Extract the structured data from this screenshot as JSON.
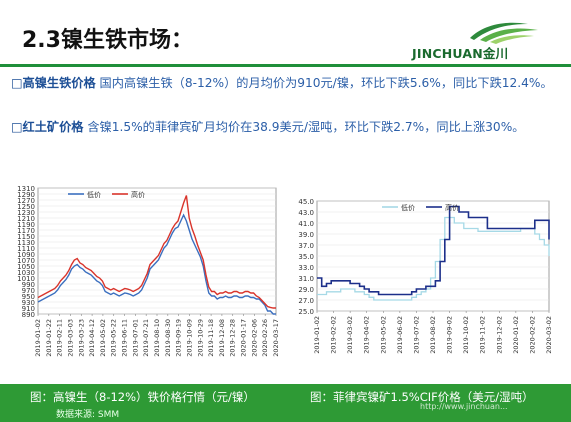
{
  "page": {
    "title": "2.3镍生铁市场：",
    "logo_text": "JINCHUAN金川",
    "para1_label": "□高镍生铁价格",
    "para1_text": "  国内高镍生铁（8-12%）的月均价为910元/镍，环比下跌5.6%，同比下跌12.4%。",
    "para2_label": "□红土矿价格",
    "para2_text": "  含镍1.5%的菲律宾矿月均价在38.9美元/湿吨，环比下跌2.7%，同比上涨30%。",
    "caption_left": "图：高镍生（8-12%）铁价格行情（元/镍）",
    "caption_right": "图：菲律宾镍矿1.5%CIF价格（美元/湿吨）",
    "source": "数据来源: SMM",
    "watermark": "http://www.jinchuan..."
  },
  "colors": {
    "accent_green": "#2e9a35",
    "text_blue": "#2c5fa8",
    "low_series": "#3b6fbf",
    "high_series": "#d9342b",
    "right_low": "#a6d9e6",
    "right_high": "#1c2f8a"
  },
  "chart_data": [
    {
      "type": "line",
      "title": "",
      "xlabel": "",
      "ylabel": "",
      "ylim": [
        890,
        1310
      ],
      "yticks": [
        890,
        910,
        930,
        950,
        970,
        990,
        1010,
        1030,
        1050,
        1070,
        1090,
        1110,
        1130,
        1150,
        1170,
        1190,
        1210,
        1230,
        1250,
        1270,
        1290,
        1310
      ],
      "xticks": [
        "2019-01-02",
        "2019-01-22",
        "2019-02-11",
        "2019-03-03",
        "2019-03-23",
        "2019-04-12",
        "2019-05-02",
        "2019-05-22",
        "2019-06-11",
        "2019-07-01",
        "2019-07-21",
        "2019-08-10",
        "2019-08-30",
        "2019-09-19",
        "2019-10-09",
        "2019-10-29",
        "2019-11-18",
        "2019-12-08",
        "2019-12-28",
        "2020-01-17",
        "2020-02-06",
        "2020-02-26",
        "2020-03-17"
      ],
      "legend_position": "top-center",
      "series": [
        {
          "name": "低价",
          "values": [
            930,
            935,
            940,
            945,
            950,
            955,
            960,
            970,
            985,
            995,
            1005,
            1020,
            1040,
            1050,
            1055,
            1045,
            1040,
            1030,
            1025,
            1020,
            1010,
            1000,
            995,
            985,
            965,
            960,
            955,
            960,
            955,
            950,
            955,
            960,
            958,
            955,
            950,
            955,
            960,
            970,
            990,
            1010,
            1040,
            1050,
            1060,
            1070,
            1090,
            1110,
            1120,
            1140,
            1160,
            1175,
            1180,
            1200,
            1220,
            1200,
            1170,
            1140,
            1120,
            1100,
            1080,
            1050,
            1000,
            960,
            950,
            950,
            940,
            945,
            945,
            950,
            945,
            945,
            950,
            950,
            945,
            945,
            950,
            950,
            945,
            945,
            940,
            940,
            930,
            920,
            900,
            900,
            890,
            890
          ]
        },
        {
          "name": "高价",
          "values": [
            945,
            950,
            955,
            960,
            965,
            970,
            975,
            985,
            1000,
            1010,
            1020,
            1035,
            1055,
            1070,
            1075,
            1060,
            1055,
            1045,
            1040,
            1035,
            1025,
            1015,
            1010,
            1000,
            980,
            975,
            970,
            975,
            970,
            965,
            970,
            975,
            973,
            970,
            965,
            970,
            975,
            985,
            1005,
            1025,
            1055,
            1065,
            1075,
            1085,
            1105,
            1125,
            1135,
            1155,
            1175,
            1190,
            1200,
            1230,
            1260,
            1285,
            1210,
            1175,
            1150,
            1120,
            1095,
            1070,
            1020,
            980,
            965,
            965,
            955,
            960,
            960,
            965,
            960,
            960,
            965,
            965,
            960,
            960,
            965,
            965,
            960,
            960,
            950,
            945,
            935,
            925,
            915,
            912,
            910,
            910
          ]
        }
      ]
    },
    {
      "type": "line",
      "title": "",
      "xlabel": "",
      "ylabel": "",
      "ylim": [
        25.0,
        45.0
      ],
      "yticks": [
        25.0,
        27.0,
        29.0,
        31.0,
        33.0,
        35.0,
        37.0,
        39.0,
        41.0,
        43.0,
        45.0
      ],
      "xticks": [
        "2019-01-02",
        "2019-02-02",
        "2019-03-02",
        "2019-04-02",
        "2019-05-02",
        "2019-06-02",
        "2019-07-02",
        "2019-08-02",
        "2019-09-02",
        "2019-10-02",
        "2019-11-02",
        "2019-12-02",
        "2020-01-02",
        "2020-02-02",
        "2020-03-02"
      ],
      "legend_position": "top-center",
      "series": [
        {
          "name": "低价",
          "values": [
            28.0,
            28.0,
            28.5,
            28.5,
            28.5,
            29.0,
            29.0,
            29.0,
            28.5,
            28.5,
            28.0,
            27.5,
            27.0,
            27.0,
            27.0,
            27.0,
            27.0,
            27.0,
            27.0,
            27.0,
            27.5,
            28.0,
            28.5,
            29.0,
            31.0,
            34.0,
            38.0,
            42.0,
            42.0,
            41.0,
            41.0,
            40.0,
            40.0,
            40.0,
            39.5,
            39.5,
            39.5,
            39.5,
            39.5,
            39.5,
            39.5,
            39.5,
            39.5,
            40.0,
            40.0,
            40.0,
            39.0,
            38.0,
            37.0,
            35.0
          ]
        },
        {
          "name": "高价",
          "values": [
            31.0,
            29.5,
            30.0,
            30.5,
            30.5,
            30.5,
            30.5,
            30.0,
            30.0,
            29.5,
            29.0,
            28.5,
            28.5,
            28.0,
            28.0,
            28.0,
            28.0,
            28.0,
            28.0,
            28.0,
            28.5,
            29.0,
            29.0,
            29.5,
            29.5,
            30.5,
            34.0,
            38.0,
            44.0,
            44.0,
            43.0,
            43.0,
            42.0,
            42.0,
            42.0,
            42.0,
            40.0,
            40.0,
            40.0,
            40.0,
            40.0,
            40.0,
            40.0,
            40.0,
            40.0,
            40.0,
            41.5,
            41.5,
            41.5,
            38.0
          ]
        }
      ]
    }
  ]
}
